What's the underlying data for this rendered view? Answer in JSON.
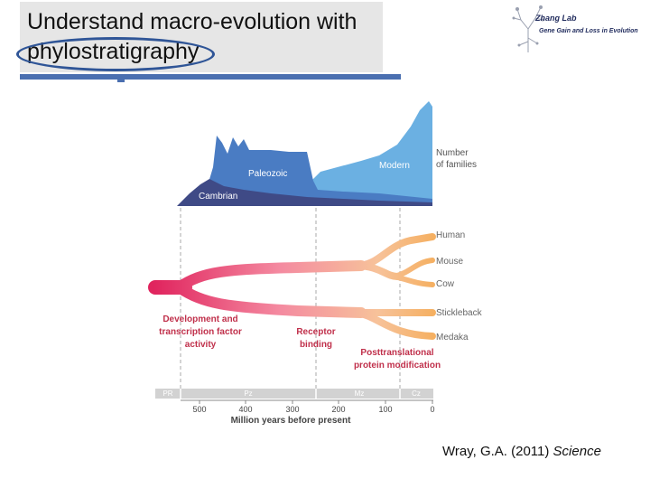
{
  "slide": {
    "title": "Understand macro-evolution with phylostratigraphy",
    "logo": {
      "name": "Zhang Lab",
      "subtitle": "Gene Gain and Loss in Evolution"
    },
    "citation": {
      "text": "Wray, G.A. (2011) ",
      "journal": "Science"
    }
  },
  "figure": {
    "areas": {
      "cambrian": "Cambrian",
      "paleozoic": "Paleozoic",
      "modern": "Modern"
    },
    "number_label": [
      "Number",
      "of families"
    ],
    "species": [
      "Human",
      "Mouse",
      "Cow",
      "Stickleback",
      "Medaka"
    ],
    "annotations": {
      "development": [
        "Development and",
        "transcription factor",
        "activity"
      ],
      "receptor": [
        "Receptor",
        "binding"
      ],
      "posttranslational": [
        "Posttranslational",
        "protein modification"
      ]
    },
    "eras": [
      "PR",
      "Pz",
      "Mz",
      "Cz"
    ],
    "axis_ticks": [
      "500",
      "400",
      "300",
      "200",
      "100",
      "0"
    ],
    "axis_label": "Million years before present",
    "colors": {
      "cambrian": "#3f4a86",
      "paleozoic": "#4a7cc3",
      "modern": "#6bb0e2",
      "tree_red": "#e0245e",
      "tree_pink": "#f48aa0",
      "tree_orange": "#f5b062",
      "annotation": "#c0304b"
    }
  }
}
